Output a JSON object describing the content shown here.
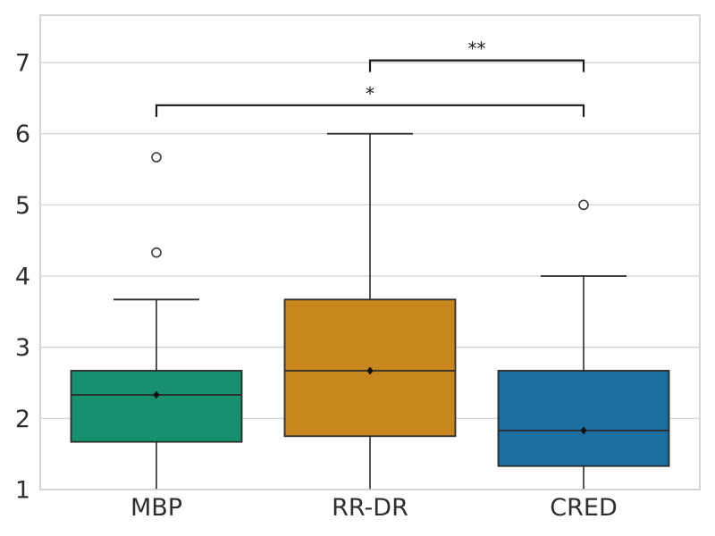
{
  "chart_data": {
    "type": "boxplot",
    "title": "",
    "xlabel": "",
    "ylabel": "",
    "categories": [
      "MBP",
      "RR-DR",
      "CRED"
    ],
    "yticks": [
      1,
      2,
      3,
      4,
      5,
      6,
      7
    ],
    "ylim": [
      1,
      7.67
    ],
    "grid": true,
    "legend": "none",
    "series": [
      {
        "name": "MBP",
        "color": "#179070",
        "q1": 1.67,
        "median": 2.33,
        "q3": 2.67,
        "whisker_low": 1.0,
        "whisker_high": 3.67,
        "mean": 2.33,
        "outliers": [
          4.33,
          5.67
        ]
      },
      {
        "name": "RR-DR",
        "color": "#c8861f",
        "q1": 1.75,
        "median": 2.67,
        "q3": 3.67,
        "whisker_low": 1.0,
        "whisker_high": 6.0,
        "mean": 2.67,
        "outliers": []
      },
      {
        "name": "CRED",
        "color": "#1b6fa0",
        "q1": 1.33,
        "median": 1.83,
        "q3": 2.67,
        "whisker_low": 1.0,
        "whisker_high": 4.0,
        "mean": 1.83,
        "outliers": [
          5.0
        ]
      }
    ],
    "annotations": [
      {
        "label": "*",
        "from": "MBP",
        "to": "CRED",
        "y": 6.4
      },
      {
        "label": "**",
        "from": "RR-DR",
        "to": "CRED",
        "y": 7.03
      }
    ]
  },
  "colors": {
    "background": "#ffffff",
    "grid": "#d4d4d4",
    "spine": "#cbcbcb",
    "box_edge": "#2b2b2b",
    "bracket": "#1a1a1a",
    "tick_label": "#2e2e2e",
    "outlier_edge": "#3a3a3a",
    "mean_marker": "#111111"
  }
}
